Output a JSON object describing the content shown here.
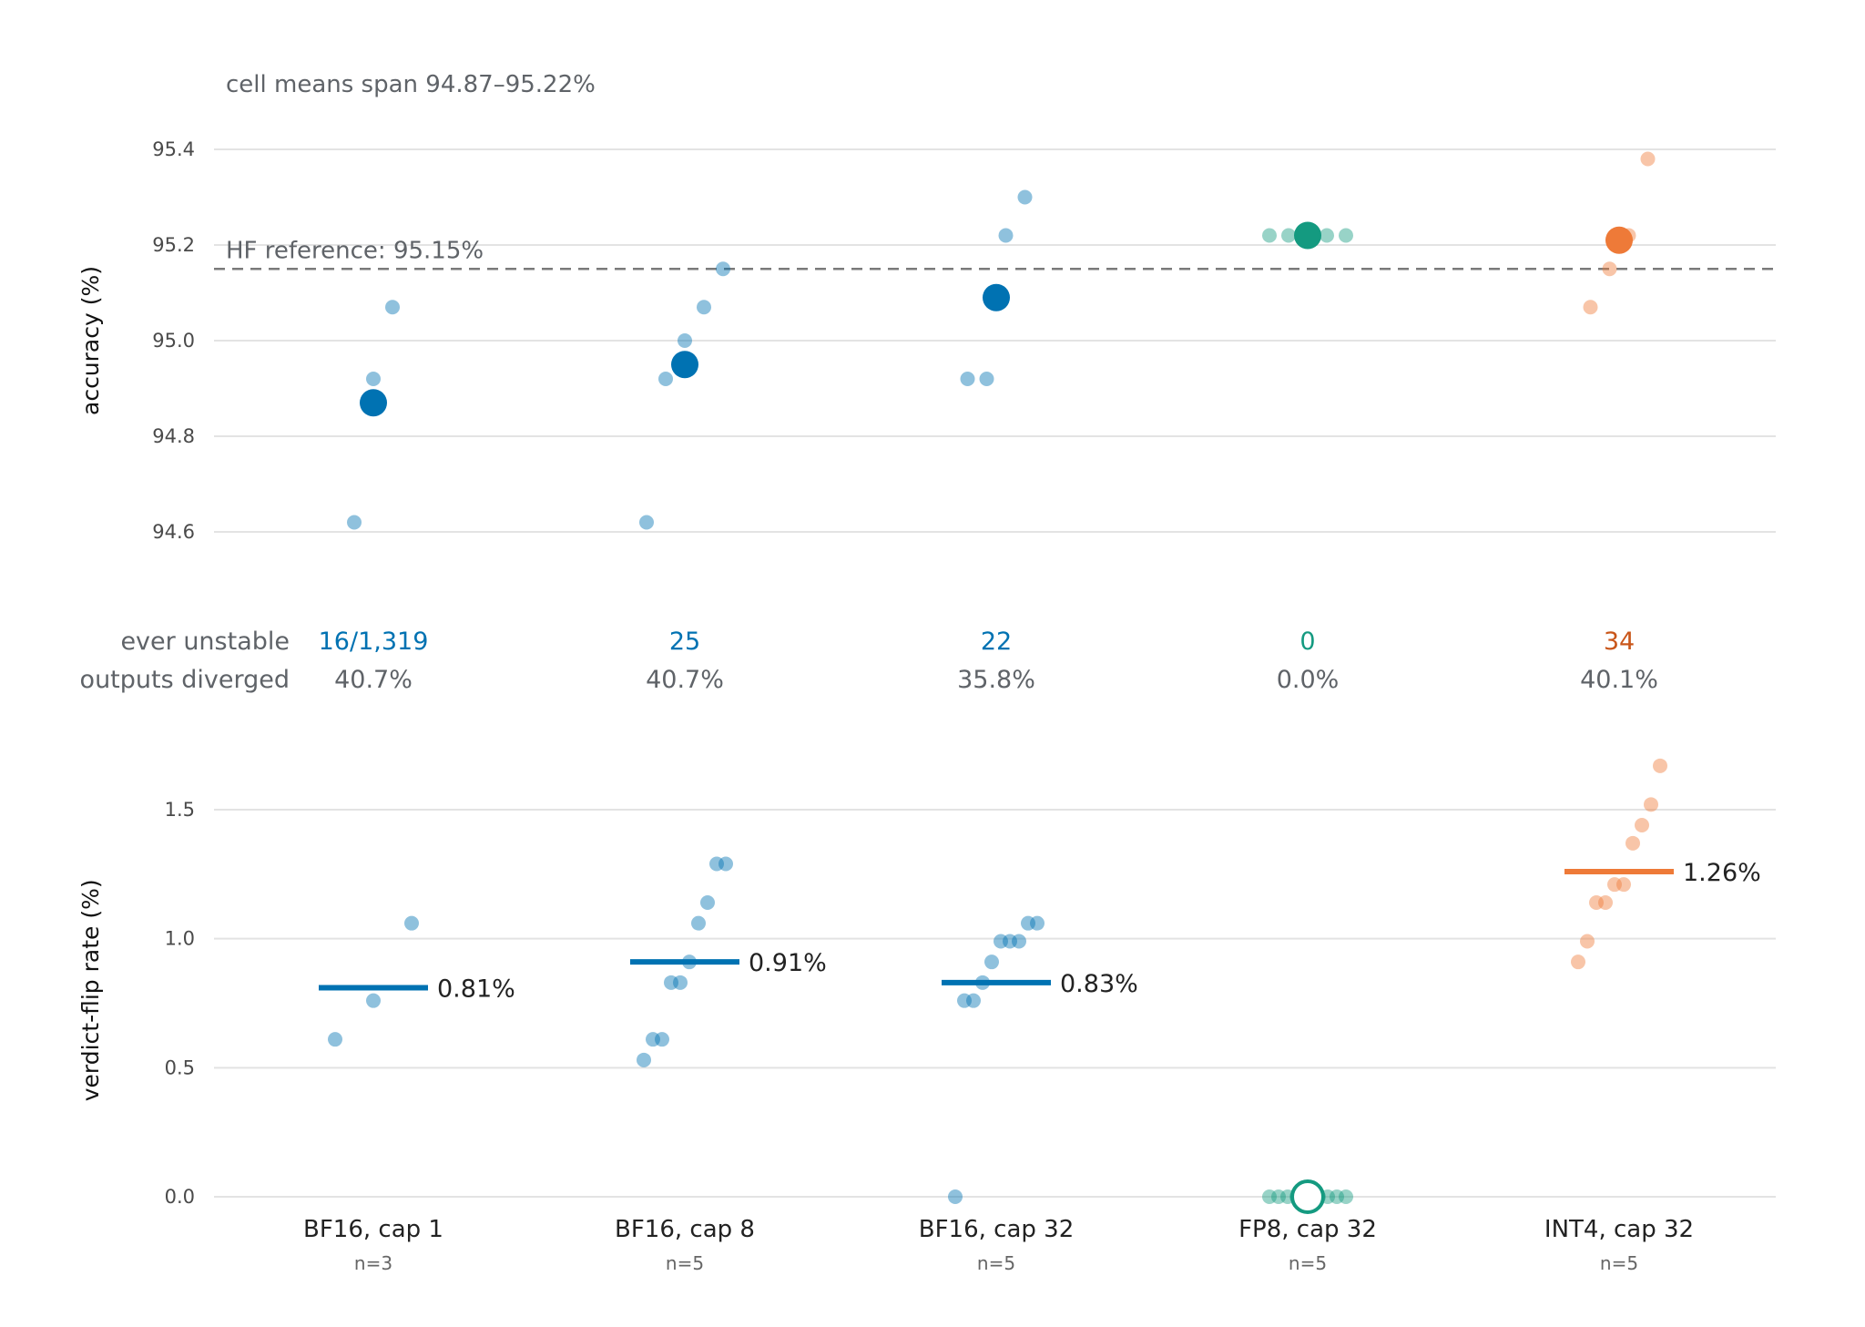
{
  "chart_data": {
    "type": "scatter",
    "note": "cell means span 94.87–95.22%",
    "categories": [
      "BF16, cap 1",
      "BF16, cap 8",
      "BF16, cap 32",
      "FP8, cap 32",
      "INT4, cap 32"
    ],
    "n_labels": [
      "n=3",
      "n=5",
      "n=5",
      "n=5",
      "n=5"
    ],
    "colors": {
      "bf16": "#0072b2",
      "fp8": "#149a80",
      "int4": "#ee7a38",
      "int4_text": "#c9561a"
    },
    "category_colors": [
      "#0072b2",
      "#0072b2",
      "#0072b2",
      "#149a80",
      "#ee7a38"
    ],
    "accuracy": {
      "ylabel": "accuracy (%)",
      "ylim": [
        94.48,
        95.48
      ],
      "yticks": [
        "95.4",
        "95.2",
        "95.0",
        "94.8",
        "94.6"
      ],
      "ytick_values": [
        95.4,
        95.2,
        95.0,
        94.8,
        94.6
      ],
      "reference": {
        "label": "HF reference: 95.15%",
        "value": 95.15
      },
      "means": [
        94.87,
        94.95,
        95.09,
        95.22,
        95.21
      ],
      "runs": [
        [
          94.62,
          94.92,
          95.07
        ],
        [
          94.62,
          94.92,
          95.0,
          95.07,
          95.15
        ],
        [
          94.92,
          94.92,
          95.22,
          95.3
        ],
        [
          95.22,
          95.22,
          95.22,
          95.22,
          95.22
        ],
        [
          95.07,
          95.15,
          95.22,
          95.38
        ]
      ]
    },
    "stats": {
      "row1_label": "ever unstable",
      "row2_label": "outputs diverged",
      "ever_unstable": [
        "16/1,319",
        "25",
        "22",
        "0",
        "34"
      ],
      "outputs_diverged": [
        "40.7%",
        "40.7%",
        "35.8%",
        "0.0%",
        "40.1%"
      ]
    },
    "flip_rate": {
      "ylabel": "verdict-flip rate (%)",
      "ylim": [
        -0.1,
        1.8
      ],
      "yticks": [
        "1.5",
        "1.0",
        "0.5",
        "0.0"
      ],
      "ytick_values": [
        1.5,
        1.0,
        0.5,
        0.0
      ],
      "means": [
        0.81,
        0.91,
        0.83,
        0.0,
        1.26
      ],
      "mean_labels": [
        "0.81%",
        "0.91%",
        "0.83%",
        "",
        "1.26%"
      ],
      "runs": [
        [
          0.61,
          0.76,
          1.06
        ],
        [
          0.53,
          0.61,
          0.61,
          0.83,
          0.83,
          0.91,
          1.06,
          1.14,
          1.29,
          1.29
        ],
        [
          0.0,
          0.76,
          0.76,
          0.83,
          0.91,
          0.99,
          0.99,
          0.99,
          1.06,
          1.06
        ],
        [
          0.0,
          0.0,
          0.0,
          0.0,
          0.0,
          0.0,
          0.0,
          0.0,
          0.0,
          0.0
        ],
        [
          0.91,
          0.99,
          1.14,
          1.14,
          1.21,
          1.21,
          1.37,
          1.44,
          1.52,
          1.67
        ]
      ]
    }
  }
}
